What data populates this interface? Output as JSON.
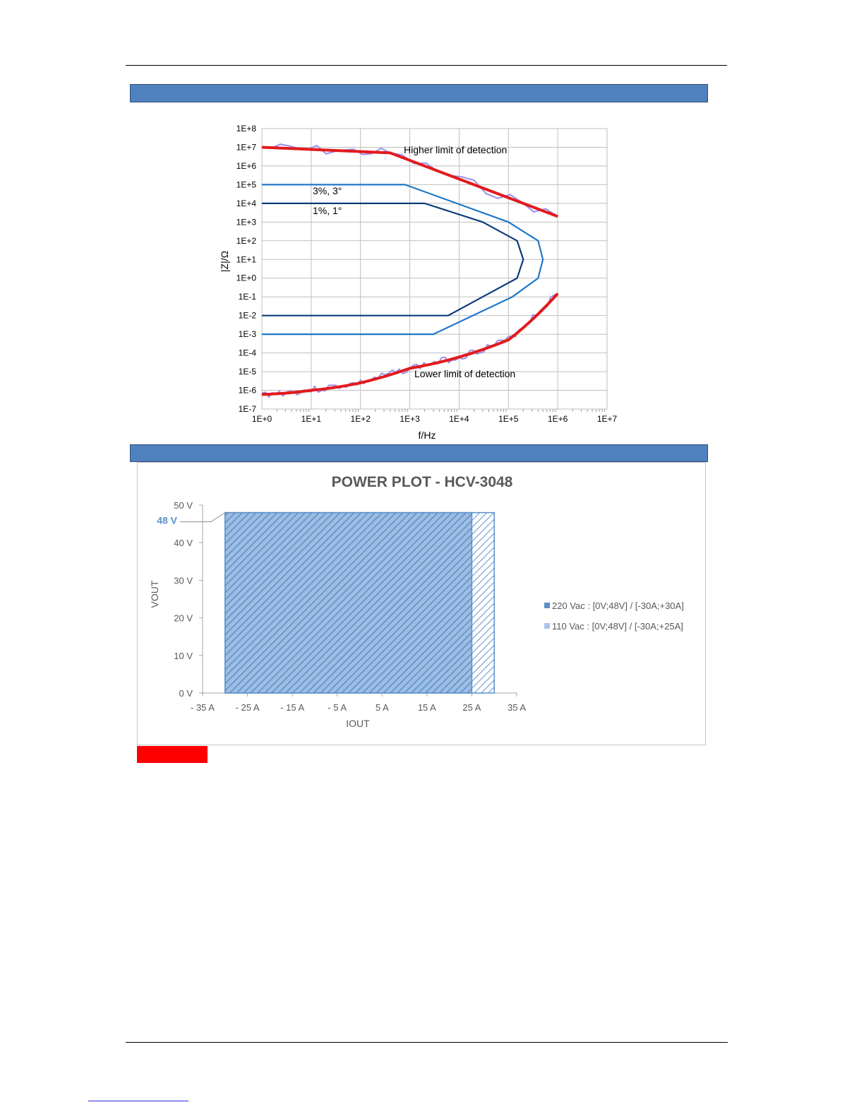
{
  "colors": {
    "band": "#4f81bd",
    "limit_line": "#e31a1c",
    "measured_line": "#9b8fe8",
    "accuracy_3pct": "#1f78c8",
    "accuracy_1pct": "#0b3d7a",
    "series_220": "#5b8fc9",
    "series_110": "#a9c6e6",
    "red_block": "#ff0000"
  },
  "chart_data": [
    {
      "type": "line",
      "title": "",
      "xlabel": "f/Hz",
      "ylabel": "|Z|/Ω",
      "x_scale": "log",
      "y_scale": "log",
      "xlim": [
        1,
        10000000
      ],
      "ylim": [
        1e-07,
        100000000.0
      ],
      "x_ticks": [
        "1E+0",
        "1E+1",
        "1E+2",
        "1E+3",
        "1E+4",
        "1E+5",
        "1E+6",
        "1E+7"
      ],
      "y_ticks": [
        "1E-7",
        "1E-6",
        "1E-5",
        "1E-4",
        "1E-3",
        "1E-2",
        "1E-1",
        "1E+0",
        "1E+1",
        "1E+2",
        "1E+3",
        "1E+4",
        "1E+5",
        "1E+6",
        "1E+7",
        "1E+8"
      ],
      "grid": true,
      "series": [
        {
          "name": "Higher limit of detection",
          "points": [
            [
              1,
              10000000.0
            ],
            [
              400,
              5000000.0
            ],
            [
              1000000,
              2000
            ]
          ]
        },
        {
          "name": "Lower limit of detection",
          "points": [
            [
              1,
              6e-07
            ],
            [
              10,
              1e-06
            ],
            [
              100,
              2.5e-06
            ],
            [
              1000,
              1.5e-05
            ],
            [
              10000,
              6e-05
            ],
            [
              100000,
              0.0005
            ],
            [
              1000000,
              0.15
            ]
          ]
        },
        {
          "name": "3%, 3°",
          "points": [
            [
              1,
              100000
            ],
            [
              800,
              100000
            ],
            [
              100000,
              1000
            ],
            [
              400000,
              100
            ],
            [
              500000,
              10
            ],
            [
              400000,
              1
            ],
            [
              120000,
              0.1
            ],
            [
              3000,
              0.001
            ],
            [
              1,
              0.001
            ]
          ]
        },
        {
          "name": "1%, 1°",
          "points": [
            [
              1,
              10000
            ],
            [
              2000,
              10000
            ],
            [
              30000,
              1000
            ],
            [
              150000,
              100
            ],
            [
              200000,
              10
            ],
            [
              150000,
              1
            ],
            [
              30000,
              0.1
            ],
            [
              6000,
              0.01
            ],
            [
              1,
              0.01
            ]
          ]
        }
      ],
      "annotations": [
        "Higher limit of detection",
        "3%, 3°",
        "1%, 1°",
        "Lower limit of detection"
      ]
    },
    {
      "type": "area",
      "title": "POWER PLOT - HCV-3048",
      "xlabel": "IOUT",
      "ylabel": "VOUT",
      "xlim": [
        -35,
        35
      ],
      "ylim": [
        0,
        50
      ],
      "x_ticks": [
        "- 35 A",
        "- 25 A",
        "- 15 A",
        "- 5 A",
        "5 A",
        "15 A",
        "25 A",
        "35 A"
      ],
      "y_ticks": [
        "0 V",
        "10 V",
        "20 V",
        "30 V",
        "40 V",
        "50 V"
      ],
      "callout": "48 V",
      "legend_position": "right",
      "series": [
        {
          "name": "220 Vac : [0V;48V] / [-30A;+30A]",
          "x_range": [
            -30,
            30
          ],
          "y_range": [
            0,
            48
          ]
        },
        {
          "name": "110 Vac : [0V;48V] / [-30A;+25A]",
          "x_range": [
            -30,
            25
          ],
          "y_range": [
            0,
            48
          ]
        }
      ]
    }
  ]
}
